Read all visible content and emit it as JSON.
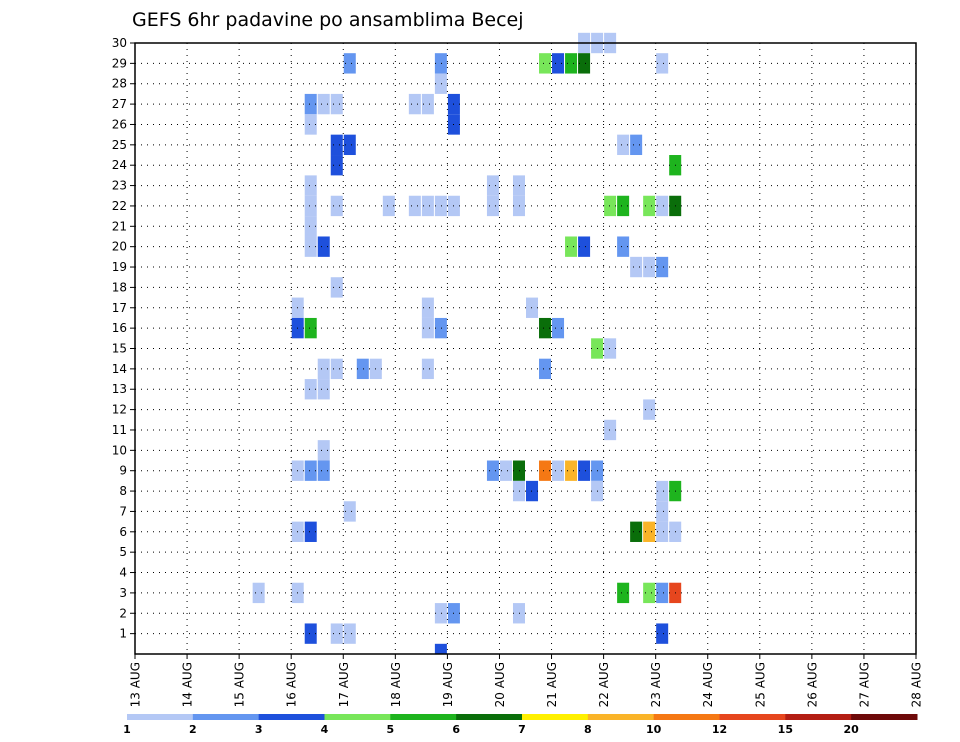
{
  "chart_data": {
    "type": "heatmap",
    "title": "GEFS 6hr padavine po ansamblima Becej",
    "xlabel": "",
    "ylabel": "",
    "x_ticks": [
      "13 AUG",
      "14 AUG",
      "15 AUG",
      "16 AUG",
      "17 AUG",
      "18 AUG",
      "19 AUG",
      "20 AUG",
      "21 AUG",
      "22 AUG",
      "23 AUG",
      "24 AUG",
      "25 AUG",
      "26 AUG",
      "27 AUG",
      "28 AUG"
    ],
    "y_ticks": [
      1,
      2,
      3,
      4,
      5,
      6,
      7,
      8,
      9,
      10,
      11,
      12,
      13,
      14,
      15,
      16,
      17,
      18,
      19,
      20,
      21,
      22,
      23,
      24,
      25,
      26,
      27,
      28,
      29,
      30
    ],
    "xlim": [
      0,
      60
    ],
    "ylim": [
      0,
      30
    ],
    "x_unit": "6-hour steps from 13 AUG 00Z",
    "y_unit": "ensemble member",
    "grid": true,
    "colorbar": {
      "ticks": [
        "1",
        "2",
        "3",
        "4",
        "5",
        "6",
        "7",
        "8",
        "10",
        "12",
        "15",
        "20"
      ],
      "colors": [
        "#b4c8f5",
        "#6496f0",
        "#1e50dc",
        "#78e65a",
        "#1eb41e",
        "#0a6e0a",
        "#fff000",
        "#fab428",
        "#f57814",
        "#e6461e",
        "#b41e14",
        "#6e0a0a"
      ]
    },
    "cells": [
      {
        "x": 34,
        "y": 30,
        "c": 0
      },
      {
        "x": 35,
        "y": 30,
        "c": 0
      },
      {
        "x": 36,
        "y": 30,
        "c": 0
      },
      {
        "x": 16,
        "y": 29,
        "c": 1
      },
      {
        "x": 31,
        "y": 29,
        "c": 3
      },
      {
        "x": 32,
        "y": 29,
        "c": 2
      },
      {
        "x": 33,
        "y": 29,
        "c": 4
      },
      {
        "x": 34,
        "y": 29,
        "c": 5
      },
      {
        "x": 40,
        "y": 29,
        "c": 0
      },
      {
        "x": 23,
        "y": 29,
        "c": 1
      },
      {
        "x": 23,
        "y": 28,
        "c": 0
      },
      {
        "x": 13,
        "y": 27,
        "c": 1
      },
      {
        "x": 14,
        "y": 27,
        "c": 0
      },
      {
        "x": 15,
        "y": 27,
        "c": 0
      },
      {
        "x": 21,
        "y": 27,
        "c": 0
      },
      {
        "x": 22,
        "y": 27,
        "c": 0
      },
      {
        "x": 24,
        "y": 27,
        "c": 2
      },
      {
        "x": 13,
        "y": 26,
        "c": 0
      },
      {
        "x": 24,
        "y": 26,
        "c": 2
      },
      {
        "x": 15,
        "y": 25,
        "c": 2
      },
      {
        "x": 16,
        "y": 25,
        "c": 2
      },
      {
        "x": 37,
        "y": 25,
        "c": 0
      },
      {
        "x": 38,
        "y": 25,
        "c": 1
      },
      {
        "x": 15,
        "y": 24,
        "c": 2
      },
      {
        "x": 41,
        "y": 24,
        "c": 4
      },
      {
        "x": 13,
        "y": 23,
        "c": 0
      },
      {
        "x": 27,
        "y": 23,
        "c": 0
      },
      {
        "x": 29,
        "y": 23,
        "c": 0
      },
      {
        "x": 13,
        "y": 22,
        "c": 0
      },
      {
        "x": 15,
        "y": 22,
        "c": 0
      },
      {
        "x": 19,
        "y": 22,
        "c": 0
      },
      {
        "x": 21,
        "y": 22,
        "c": 0
      },
      {
        "x": 22,
        "y": 22,
        "c": 0
      },
      {
        "x": 23,
        "y": 22,
        "c": 0
      },
      {
        "x": 24,
        "y": 22,
        "c": 0
      },
      {
        "x": 27,
        "y": 22,
        "c": 0
      },
      {
        "x": 29,
        "y": 22,
        "c": 0
      },
      {
        "x": 36,
        "y": 22,
        "c": 3
      },
      {
        "x": 37,
        "y": 22,
        "c": 4
      },
      {
        "x": 39,
        "y": 22,
        "c": 3
      },
      {
        "x": 40,
        "y": 22,
        "c": 0
      },
      {
        "x": 41,
        "y": 22,
        "c": 5
      },
      {
        "x": 13,
        "y": 21,
        "c": 0
      },
      {
        "x": 13,
        "y": 20,
        "c": 0
      },
      {
        "x": 14,
        "y": 20,
        "c": 2
      },
      {
        "x": 33,
        "y": 20,
        "c": 3
      },
      {
        "x": 34,
        "y": 20,
        "c": 2
      },
      {
        "x": 37,
        "y": 20,
        "c": 1
      },
      {
        "x": 38,
        "y": 19,
        "c": 0
      },
      {
        "x": 39,
        "y": 19,
        "c": 0
      },
      {
        "x": 40,
        "y": 19,
        "c": 1
      },
      {
        "x": 15,
        "y": 18,
        "c": 0
      },
      {
        "x": 12,
        "y": 17,
        "c": 0
      },
      {
        "x": 22,
        "y": 17,
        "c": 0
      },
      {
        "x": 30,
        "y": 17,
        "c": 0
      },
      {
        "x": 12,
        "y": 16,
        "c": 2
      },
      {
        "x": 13,
        "y": 16,
        "c": 4
      },
      {
        "x": 22,
        "y": 16,
        "c": 0
      },
      {
        "x": 23,
        "y": 16,
        "c": 1
      },
      {
        "x": 31,
        "y": 16,
        "c": 5
      },
      {
        "x": 32,
        "y": 16,
        "c": 1
      },
      {
        "x": 35,
        "y": 15,
        "c": 3
      },
      {
        "x": 36,
        "y": 15,
        "c": 0
      },
      {
        "x": 14,
        "y": 14,
        "c": 0
      },
      {
        "x": 15,
        "y": 14,
        "c": 0
      },
      {
        "x": 17,
        "y": 14,
        "c": 1
      },
      {
        "x": 18,
        "y": 14,
        "c": 0
      },
      {
        "x": 22,
        "y": 14,
        "c": 0
      },
      {
        "x": 31,
        "y": 14,
        "c": 1
      },
      {
        "x": 13,
        "y": 13,
        "c": 0
      },
      {
        "x": 14,
        "y": 13,
        "c": 0
      },
      {
        "x": 39,
        "y": 12,
        "c": 0
      },
      {
        "x": 36,
        "y": 11,
        "c": 0
      },
      {
        "x": 14,
        "y": 10,
        "c": 0
      },
      {
        "x": 12,
        "y": 9,
        "c": 0
      },
      {
        "x": 13,
        "y": 9,
        "c": 1
      },
      {
        "x": 14,
        "y": 9,
        "c": 1
      },
      {
        "x": 27,
        "y": 9,
        "c": 1
      },
      {
        "x": 28,
        "y": 9,
        "c": 0
      },
      {
        "x": 29,
        "y": 9,
        "c": 5
      },
      {
        "x": 31,
        "y": 9,
        "c": 8
      },
      {
        "x": 32,
        "y": 9,
        "c": 0
      },
      {
        "x": 33,
        "y": 9,
        "c": 7
      },
      {
        "x": 34,
        "y": 9,
        "c": 2
      },
      {
        "x": 35,
        "y": 9,
        "c": 1
      },
      {
        "x": 29,
        "y": 8,
        "c": 0
      },
      {
        "x": 30,
        "y": 8,
        "c": 2
      },
      {
        "x": 35,
        "y": 8,
        "c": 0
      },
      {
        "x": 40,
        "y": 8,
        "c": 0
      },
      {
        "x": 41,
        "y": 8,
        "c": 4
      },
      {
        "x": 16,
        "y": 7,
        "c": 0
      },
      {
        "x": 40,
        "y": 7,
        "c": 0
      },
      {
        "x": 12,
        "y": 6,
        "c": 0
      },
      {
        "x": 13,
        "y": 6,
        "c": 2
      },
      {
        "x": 38,
        "y": 6,
        "c": 5
      },
      {
        "x": 39,
        "y": 6,
        "c": 7
      },
      {
        "x": 40,
        "y": 6,
        "c": 0
      },
      {
        "x": 41,
        "y": 6,
        "c": 0
      },
      {
        "x": 9,
        "y": 3,
        "c": 0
      },
      {
        "x": 12,
        "y": 3,
        "c": 0
      },
      {
        "x": 37,
        "y": 3,
        "c": 4
      },
      {
        "x": 39,
        "y": 3,
        "c": 3
      },
      {
        "x": 40,
        "y": 3,
        "c": 1
      },
      {
        "x": 41,
        "y": 3,
        "c": 9
      },
      {
        "x": 23,
        "y": 2,
        "c": 0
      },
      {
        "x": 24,
        "y": 2,
        "c": 1
      },
      {
        "x": 29,
        "y": 2,
        "c": 0
      },
      {
        "x": 13,
        "y": 1,
        "c": 2
      },
      {
        "x": 15,
        "y": 1,
        "c": 0
      },
      {
        "x": 16,
        "y": 1,
        "c": 0
      },
      {
        "x": 40,
        "y": 1,
        "c": 2
      },
      {
        "x": 23,
        "y": 0,
        "c": 2
      }
    ]
  }
}
